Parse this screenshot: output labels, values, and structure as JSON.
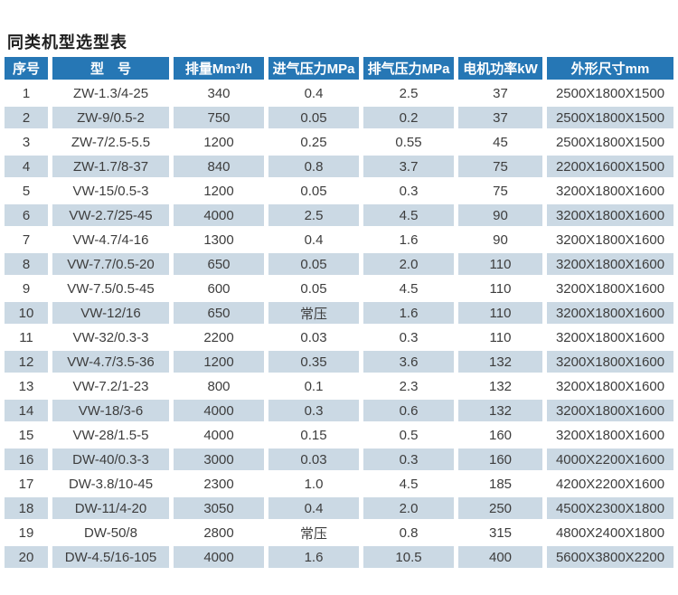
{
  "title": "同类机型选型表",
  "colors": {
    "header_bg": "#2677b5",
    "header_text": "#ffffff",
    "row_alt_bg": "#cbd9e4",
    "row_bg": "#ffffff",
    "cell_text": "#3d3d3d",
    "title_text": "#1f1f1f"
  },
  "table": {
    "headers": [
      "序号",
      "型　号",
      "排量Mm³/h",
      "进气压力MPa",
      "排气压力MPa",
      "电机功率kW",
      "外形尺寸mm"
    ],
    "rows": [
      [
        "1",
        "ZW-1.3/4-25",
        "340",
        "0.4",
        "2.5",
        "37",
        "2500X1800X1500"
      ],
      [
        "2",
        "ZW-9/0.5-2",
        "750",
        "0.05",
        "0.2",
        "37",
        "2500X1800X1500"
      ],
      [
        "3",
        "ZW-7/2.5-5.5",
        "1200",
        "0.25",
        "0.55",
        "45",
        "2500X1800X1500"
      ],
      [
        "4",
        "ZW-1.7/8-37",
        "840",
        "0.8",
        "3.7",
        "75",
        "2200X1600X1500"
      ],
      [
        "5",
        "VW-15/0.5-3",
        "1200",
        "0.05",
        "0.3",
        "75",
        "3200X1800X1600"
      ],
      [
        "6",
        "VW-2.7/25-45",
        "4000",
        "2.5",
        "4.5",
        "90",
        "3200X1800X1600"
      ],
      [
        "7",
        "VW-4.7/4-16",
        "1300",
        "0.4",
        "1.6",
        "90",
        "3200X1800X1600"
      ],
      [
        "8",
        "VW-7.7/0.5-20",
        "650",
        "0.05",
        "2.0",
        "110",
        "3200X1800X1600"
      ],
      [
        "9",
        "VW-7.5/0.5-45",
        "600",
        "0.05",
        "4.5",
        "110",
        "3200X1800X1600"
      ],
      [
        "10",
        "VW-12/16",
        "650",
        "常压",
        "1.6",
        "110",
        "3200X1800X1600"
      ],
      [
        "11",
        "VW-32/0.3-3",
        "2200",
        "0.03",
        "0.3",
        "110",
        "3200X1800X1600"
      ],
      [
        "12",
        "VW-4.7/3.5-36",
        "1200",
        "0.35",
        "3.6",
        "132",
        "3200X1800X1600"
      ],
      [
        "13",
        "VW-7.2/1-23",
        "800",
        "0.1",
        "2.3",
        "132",
        "3200X1800X1600"
      ],
      [
        "14",
        "VW-18/3-6",
        "4000",
        "0.3",
        "0.6",
        "132",
        "3200X1800X1600"
      ],
      [
        "15",
        "VW-28/1.5-5",
        "4000",
        "0.15",
        "0.5",
        "160",
        "3200X1800X1600"
      ],
      [
        "16",
        "DW-40/0.3-3",
        "3000",
        "0.03",
        "0.3",
        "160",
        "4000X2200X1600"
      ],
      [
        "17",
        "DW-3.8/10-45",
        "2300",
        "1.0",
        "4.5",
        "185",
        "4200X2200X1600"
      ],
      [
        "18",
        "DW-11/4-20",
        "3050",
        "0.4",
        "2.0",
        "250",
        "4500X2300X1800"
      ],
      [
        "19",
        "DW-50/8",
        "2800",
        "常压",
        "0.8",
        "315",
        "4800X2400X1800"
      ],
      [
        "20",
        "DW-4.5/16-105",
        "4000",
        "1.6",
        "10.5",
        "400",
        "5600X3800X2200"
      ]
    ]
  }
}
